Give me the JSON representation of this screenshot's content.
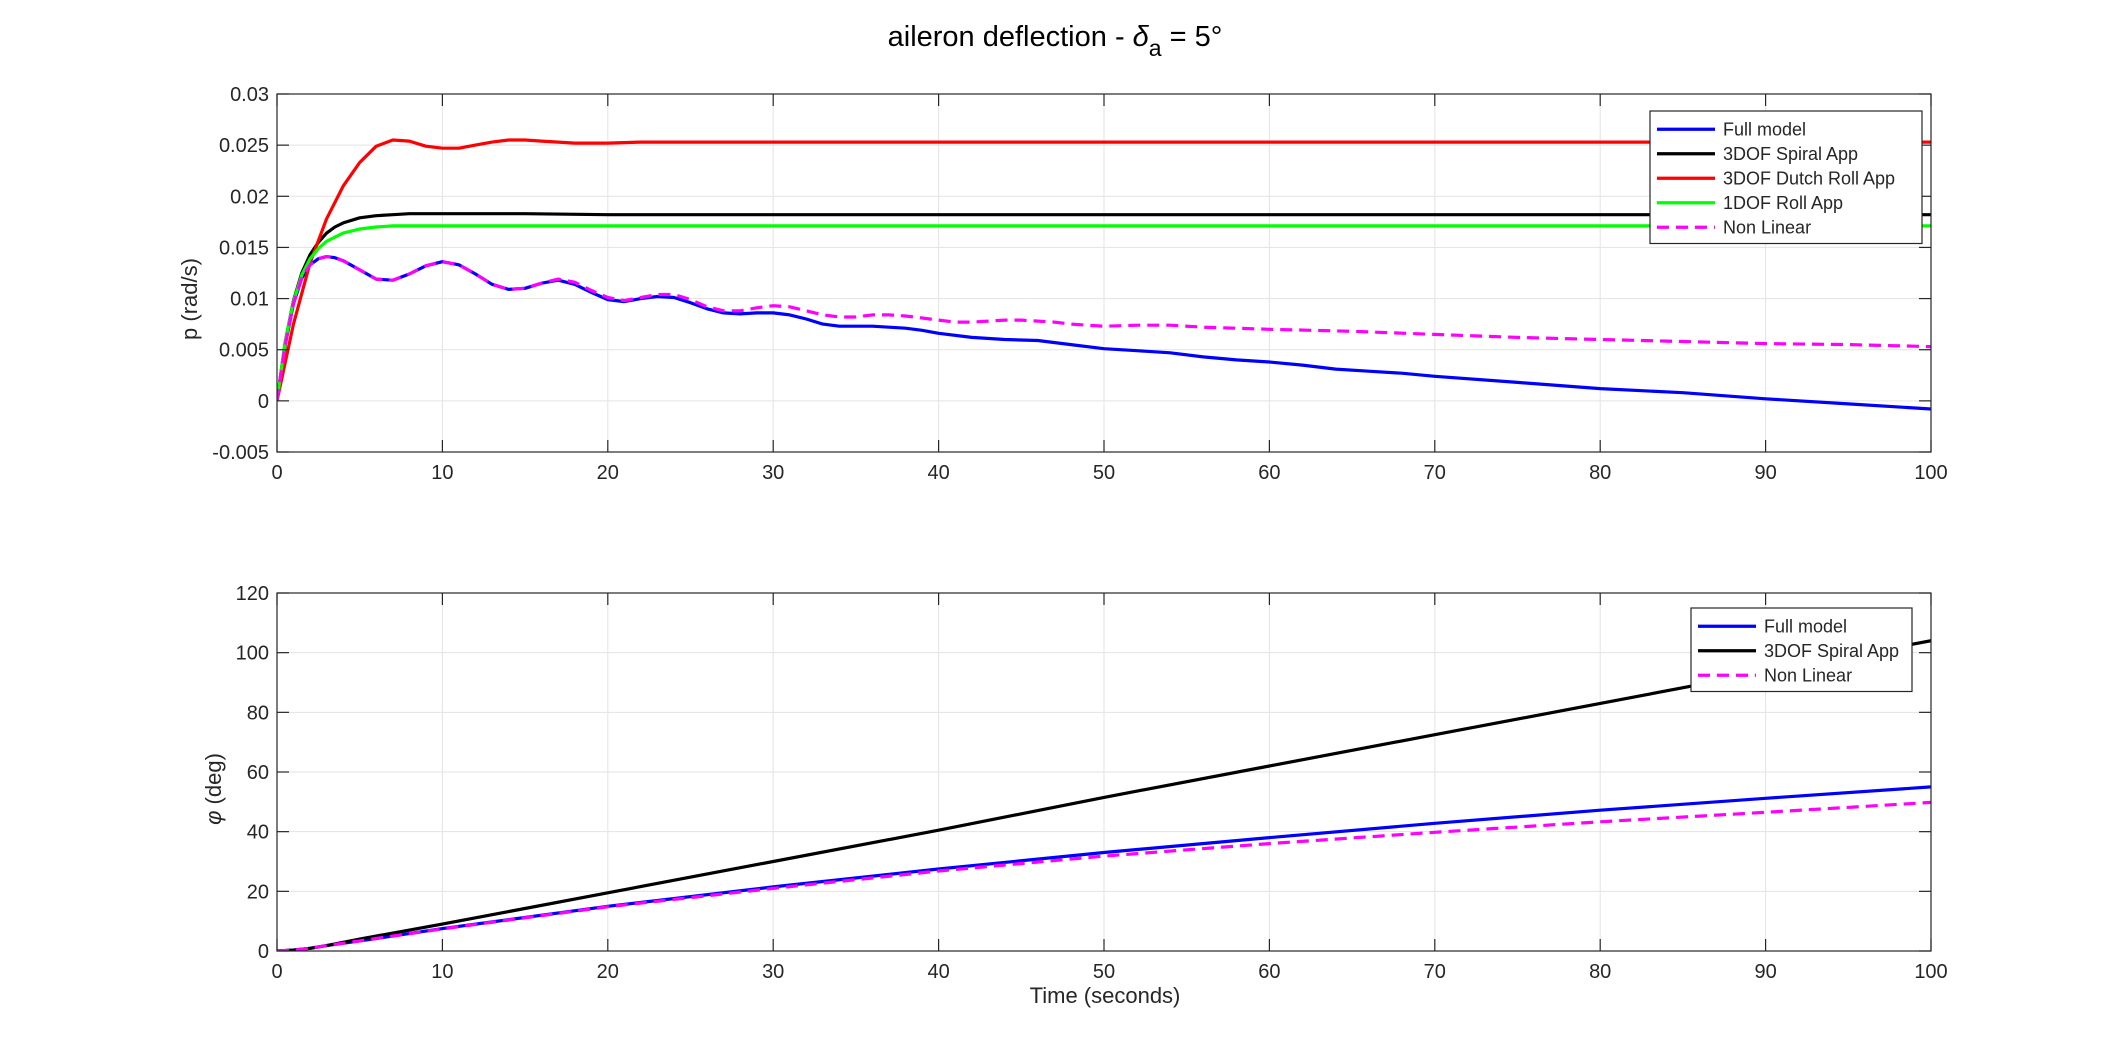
{
  "figure": {
    "title_main": "aileron deflection - ",
    "title_symbol": "δ",
    "title_subscript": "a",
    "title_tail": " = 5°",
    "xlabel": "Time (seconds)",
    "ylabel_top": "p (rad/s)",
    "ylabel_bottom_symbol": "φ",
    "ylabel_bottom_tail": " (deg)"
  },
  "colors": {
    "full_model": "#0000ff",
    "spiral": "#000000",
    "dutch_roll": "#ff0000",
    "roll": "#00ff00",
    "non_linear": "#ff00ff",
    "grid": "#e3e3e3",
    "axis": "#262626"
  },
  "chart_data": [
    {
      "type": "line",
      "title": "aileron deflection - δa = 5°",
      "xlabel": "",
      "ylabel": "p (rad/s)",
      "xlim": [
        0,
        100
      ],
      "ylim": [
        -0.005,
        0.03
      ],
      "xticks": [
        0,
        10,
        20,
        30,
        40,
        50,
        60,
        70,
        80,
        90,
        100
      ],
      "xtick_labels": [
        "0",
        "10",
        "20",
        "30",
        "40",
        "50",
        "60",
        "70",
        "80",
        "90",
        "100"
      ],
      "yticks": [
        -0.005,
        0,
        0.005,
        0.01,
        0.015,
        0.02,
        0.025,
        0.03
      ],
      "ytick_labels": [
        "-0.005",
        "0",
        "0.005",
        "0.01",
        "0.015",
        "0.02",
        "0.025",
        "0.03"
      ],
      "grid": true,
      "legend_position": "top-right",
      "series": [
        {
          "name": "Full model",
          "color": "#0000ff",
          "dashed": false,
          "x": [
            0,
            0.5,
            1,
            1.5,
            2,
            2.5,
            3,
            3.5,
            4,
            5,
            6,
            7,
            8,
            9,
            10,
            11,
            12,
            13,
            14,
            15,
            16,
            17,
            18,
            19,
            20,
            21,
            22,
            23,
            24,
            25,
            26,
            27,
            28,
            29,
            30,
            31,
            32,
            33,
            34,
            35,
            36,
            37,
            38,
            39,
            40,
            42,
            44,
            46,
            48,
            50,
            52,
            54,
            56,
            58,
            60,
            62,
            64,
            66,
            68,
            70,
            75,
            80,
            85,
            90,
            95,
            100
          ],
          "y": [
            0,
            0.0055,
            0.0095,
            0.012,
            0.0133,
            0.0139,
            0.0141,
            0.014,
            0.0137,
            0.0128,
            0.0119,
            0.0118,
            0.0124,
            0.0132,
            0.0136,
            0.0133,
            0.0124,
            0.0114,
            0.0109,
            0.011,
            0.0115,
            0.0118,
            0.0114,
            0.0106,
            0.0099,
            0.0097,
            0.01,
            0.0102,
            0.0101,
            0.0096,
            0.009,
            0.0086,
            0.0085,
            0.0086,
            0.0086,
            0.0084,
            0.008,
            0.0075,
            0.0073,
            0.0073,
            0.0073,
            0.0072,
            0.0071,
            0.0069,
            0.0066,
            0.0062,
            0.006,
            0.0059,
            0.0055,
            0.0051,
            0.0049,
            0.0047,
            0.0043,
            0.004,
            0.0038,
            0.0035,
            0.0031,
            0.0029,
            0.0027,
            0.0024,
            0.0018,
            0.0012,
            0.0008,
            0.0002,
            -0.0003,
            -0.0008
          ]
        },
        {
          "name": "3DOF Spiral App",
          "color": "#000000",
          "dashed": false,
          "x": [
            0,
            0.5,
            1,
            1.5,
            2,
            2.5,
            3,
            3.5,
            4,
            5,
            6,
            7,
            8,
            9,
            10,
            12,
            15,
            20,
            30,
            50,
            100
          ],
          "y": [
            0,
            0.0058,
            0.0098,
            0.0125,
            0.0143,
            0.0155,
            0.0164,
            0.017,
            0.0174,
            0.0179,
            0.0181,
            0.0182,
            0.0183,
            0.0183,
            0.0183,
            0.0183,
            0.0183,
            0.0182,
            0.0182,
            0.0182,
            0.0182
          ]
        },
        {
          "name": "3DOF Dutch Roll App",
          "color": "#ff0000",
          "dashed": false,
          "x": [
            0,
            1,
            2,
            3,
            4,
            5,
            6,
            7,
            8,
            9,
            10,
            11,
            12,
            13,
            14,
            15,
            16,
            17,
            18,
            19,
            20,
            22,
            24,
            26,
            28,
            30,
            35,
            40,
            50,
            100
          ],
          "y": [
            0,
            0.0075,
            0.0135,
            0.0178,
            0.021,
            0.0233,
            0.0249,
            0.0255,
            0.0254,
            0.0249,
            0.0247,
            0.0247,
            0.025,
            0.0253,
            0.0255,
            0.0255,
            0.0254,
            0.0253,
            0.0252,
            0.0252,
            0.0252,
            0.0253,
            0.0253,
            0.0253,
            0.0253,
            0.0253,
            0.0253,
            0.0253,
            0.0253,
            0.0253
          ]
        },
        {
          "name": "1DOF Roll App",
          "color": "#00ff00",
          "dashed": false,
          "x": [
            0,
            0.5,
            1,
            1.5,
            2,
            2.5,
            3,
            3.5,
            4,
            5,
            6,
            7,
            8,
            10,
            15,
            100
          ],
          "y": [
            0,
            0.0058,
            0.0097,
            0.0123,
            0.0139,
            0.0149,
            0.0156,
            0.016,
            0.0164,
            0.0168,
            0.017,
            0.0171,
            0.0171,
            0.0171,
            0.0171,
            0.0171
          ]
        },
        {
          "name": "Non Linear",
          "color": "#ff00ff",
          "dashed": true,
          "x": [
            0,
            0.5,
            1,
            1.5,
            2,
            2.5,
            3,
            3.5,
            4,
            5,
            6,
            7,
            8,
            9,
            10,
            11,
            12,
            13,
            14,
            15,
            16,
            17,
            18,
            19,
            20,
            21,
            22,
            23,
            24,
            25,
            26,
            27,
            28,
            29,
            30,
            31,
            32,
            33,
            34,
            35,
            36,
            37,
            38,
            39,
            40,
            41,
            42,
            43,
            44,
            45,
            46,
            47,
            48,
            49,
            50,
            52,
            54,
            56,
            58,
            60,
            65,
            70,
            75,
            80,
            85,
            90,
            95,
            100
          ],
          "y": [
            0,
            0.0055,
            0.0095,
            0.012,
            0.0133,
            0.0139,
            0.0141,
            0.014,
            0.0137,
            0.0128,
            0.0119,
            0.0118,
            0.0124,
            0.0132,
            0.0136,
            0.0133,
            0.0124,
            0.0114,
            0.0109,
            0.011,
            0.0115,
            0.0119,
            0.0116,
            0.0108,
            0.0101,
            0.0098,
            0.0101,
            0.0104,
            0.0104,
            0.0099,
            0.0092,
            0.0088,
            0.0088,
            0.0091,
            0.0093,
            0.0092,
            0.0088,
            0.0084,
            0.0082,
            0.0082,
            0.0084,
            0.0084,
            0.0083,
            0.0081,
            0.0079,
            0.0077,
            0.0077,
            0.0078,
            0.0079,
            0.0079,
            0.0078,
            0.0077,
            0.0075,
            0.0074,
            0.0073,
            0.0074,
            0.0074,
            0.0072,
            0.0071,
            0.007,
            0.0068,
            0.0065,
            0.0062,
            0.006,
            0.0058,
            0.0056,
            0.0055,
            0.0053
          ]
        }
      ]
    },
    {
      "type": "line",
      "title": "",
      "xlabel": "Time (seconds)",
      "ylabel": "φ (deg)",
      "xlim": [
        0,
        100
      ],
      "ylim": [
        0,
        120
      ],
      "xticks": [
        0,
        10,
        20,
        30,
        40,
        50,
        60,
        70,
        80,
        90,
        100
      ],
      "xtick_labels": [
        "0",
        "10",
        "20",
        "30",
        "40",
        "50",
        "60",
        "70",
        "80",
        "90",
        "100"
      ],
      "yticks": [
        0,
        20,
        40,
        60,
        80,
        100,
        120
      ],
      "ytick_labels": [
        "0",
        "20",
        "40",
        "60",
        "80",
        "100",
        "120"
      ],
      "grid": true,
      "legend_position": "top-right",
      "series": [
        {
          "name": "Full model",
          "color": "#0000ff",
          "dashed": false,
          "x": [
            0,
            1,
            2,
            3,
            5,
            10,
            20,
            30,
            40,
            50,
            60,
            70,
            80,
            90,
            100
          ],
          "y": [
            0,
            0.3,
            0.9,
            1.8,
            3.4,
            7.5,
            15,
            21.5,
            27.5,
            33,
            38,
            42.8,
            47.2,
            51.2,
            55
          ]
        },
        {
          "name": "3DOF Spiral App",
          "color": "#000000",
          "dashed": false,
          "x": [
            0,
            1,
            2,
            3,
            5,
            10,
            20,
            30,
            40,
            50,
            60,
            70,
            80,
            90,
            100
          ],
          "y": [
            0,
            0.3,
            0.9,
            1.8,
            4,
            9,
            19.5,
            30,
            40.5,
            51.5,
            62,
            72.5,
            83,
            93.5,
            104
          ]
        },
        {
          "name": "Non Linear",
          "color": "#ff00ff",
          "dashed": true,
          "x": [
            0,
            1,
            2,
            3,
            5,
            10,
            20,
            30,
            40,
            50,
            60,
            70,
            80,
            90,
            100
          ],
          "y": [
            0,
            0.3,
            0.9,
            1.8,
            3.4,
            7.4,
            14.8,
            21,
            26.8,
            31.8,
            36,
            39.8,
            43.3,
            46.5,
            49.8
          ]
        }
      ]
    }
  ]
}
